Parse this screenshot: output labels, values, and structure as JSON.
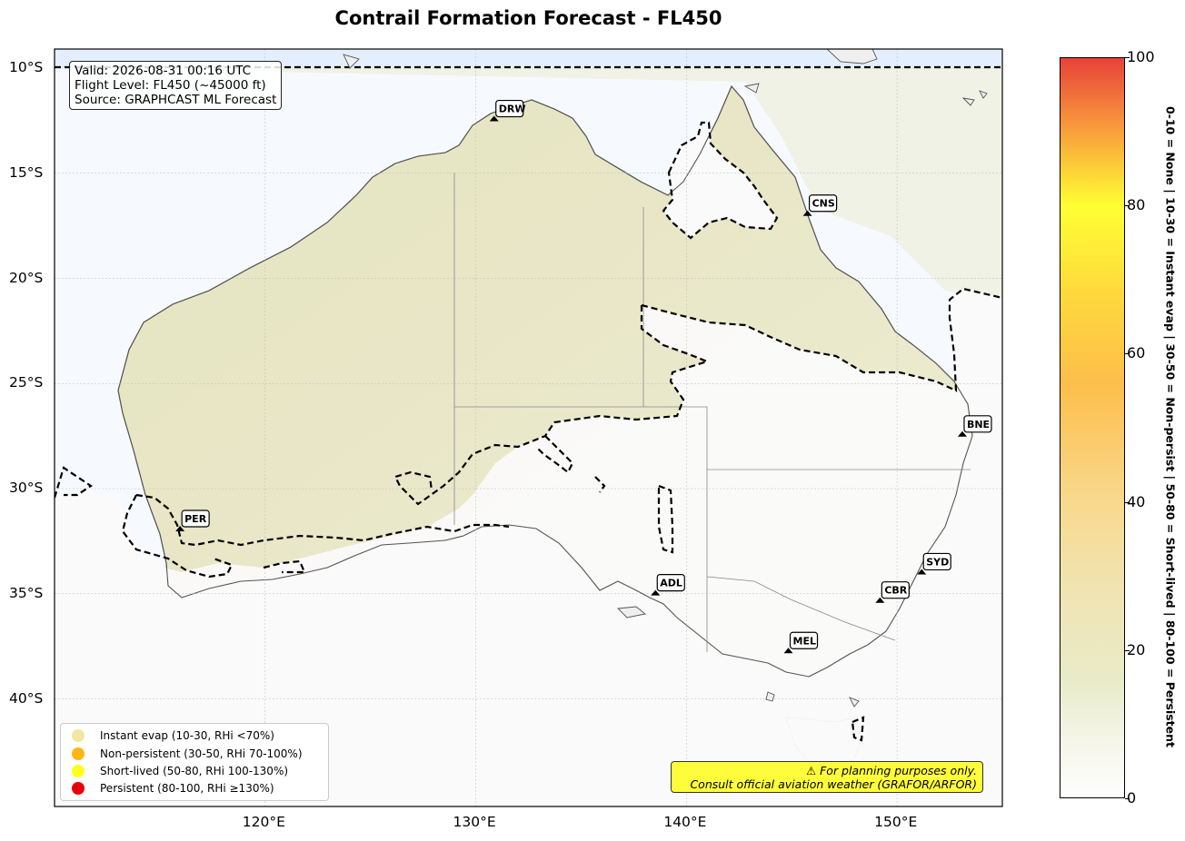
{
  "title": "Contrail Formation Forecast - FL450",
  "info": {
    "valid": "Valid: 2026-08-31 00:16 UTC",
    "flight_level": "Flight Level: FL450 (~45000 ft)",
    "source": "Source: GRAPHCAST ML Forecast"
  },
  "lat_ticks": [
    "10°S",
    "15°S",
    "20°S",
    "25°S",
    "30°S",
    "35°S",
    "40°S"
  ],
  "lon_ticks": [
    "120°E",
    "130°E",
    "140°E",
    "150°E"
  ],
  "airports": [
    {
      "code": "DRW",
      "lon": 130.87,
      "lat": -12.4
    },
    {
      "code": "CNS",
      "lon": 145.75,
      "lat": -16.9
    },
    {
      "code": "BNE",
      "lon": 153.1,
      "lat": -27.4
    },
    {
      "code": "PER",
      "lon": 115.96,
      "lat": -31.9
    },
    {
      "code": "ADL",
      "lon": 138.53,
      "lat": -34.95
    },
    {
      "code": "SYD",
      "lon": 151.17,
      "lat": -33.95
    },
    {
      "code": "CBR",
      "lon": 149.19,
      "lat": -35.3
    },
    {
      "code": "MEL",
      "lon": 144.84,
      "lat": -37.7
    }
  ],
  "legend": [
    {
      "label": "Instant evap (10-30, RHi <70%)",
      "color": "#f2e6a0"
    },
    {
      "label": "Non-persistent (30-50, RHi 70-100%)",
      "color": "#ffb515"
    },
    {
      "label": "Short-lived (50-80, RHi 100-130%)",
      "color": "#ffff19"
    },
    {
      "label": "Persistent (80-100, RHi ≥130%)",
      "color": "#e8000b"
    }
  ],
  "disclaimer": {
    "line1": "⚠ For planning purposes only.",
    "line2": "Consult official aviation weather (GRAFOR/ARFOR)"
  },
  "colorbar": {
    "ticks": [
      "0",
      "20",
      "40",
      "60",
      "80",
      "100"
    ],
    "label": "0-10 = None  |  10-30 = Instant evap  |  30-50 = Non-persist  |  50-80 = Short-lived  |  80-100 = Persistent"
  },
  "colors": {
    "land_fill": "#e6e7c3",
    "ocean_fill": "#f6fafe",
    "low_fill": "#fafafa",
    "tropic_band": "#e3efff"
  }
}
